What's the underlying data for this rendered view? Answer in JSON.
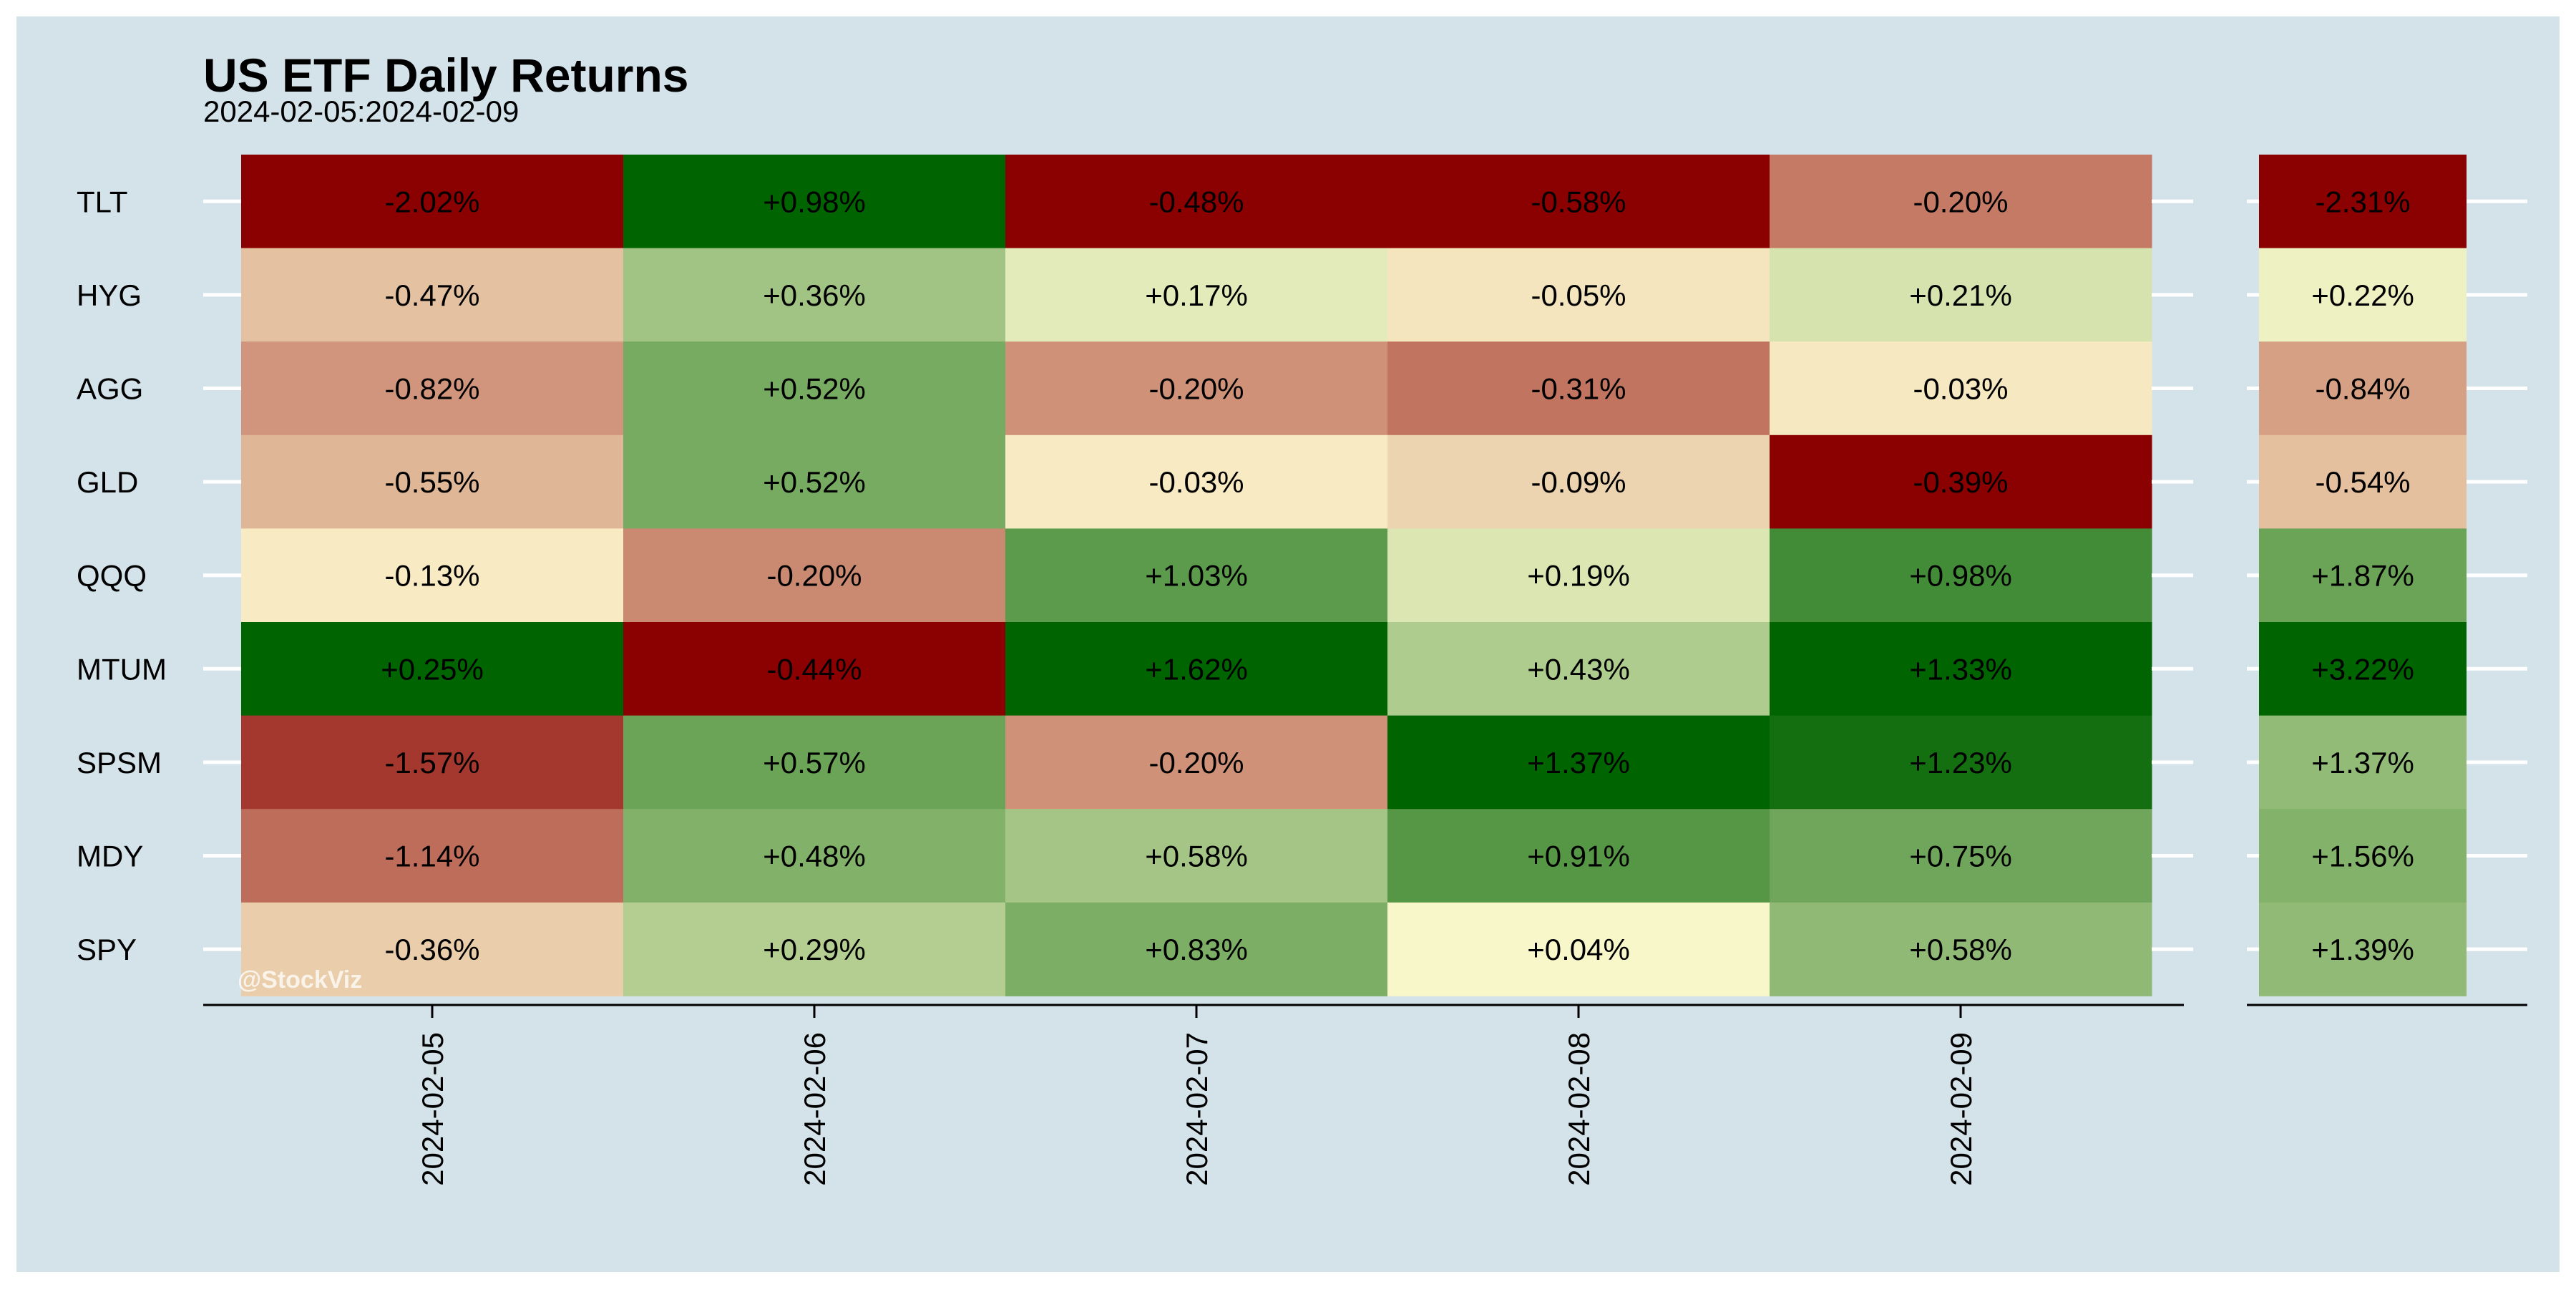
{
  "chart_data": {
    "type": "heatmap",
    "title": "US ETF Daily Returns",
    "subtitle": "2024-02-05:2024-02-09",
    "rows": [
      "TLT",
      "HYG",
      "AGG",
      "GLD",
      "QQQ",
      "MTUM",
      "SPSM",
      "MDY",
      "SPY"
    ],
    "columns": [
      "2024-02-05",
      "2024-02-06",
      "2024-02-07",
      "2024-02-08",
      "2024-02-09"
    ],
    "values": [
      [
        -2.02,
        0.98,
        -0.48,
        -0.58,
        -0.2
      ],
      [
        -0.47,
        0.36,
        0.17,
        -0.05,
        0.21
      ],
      [
        -0.82,
        0.52,
        -0.2,
        -0.31,
        -0.03
      ],
      [
        -0.55,
        0.52,
        -0.03,
        -0.09,
        -0.39
      ],
      [
        -0.13,
        -0.2,
        1.03,
        0.19,
        0.98
      ],
      [
        0.25,
        -0.44,
        1.62,
        0.43,
        1.33
      ],
      [
        -1.57,
        0.57,
        -0.2,
        1.37,
        1.23
      ],
      [
        -1.14,
        0.48,
        0.58,
        0.91,
        0.75
      ],
      [
        -0.36,
        0.29,
        0.83,
        0.04,
        0.58
      ]
    ],
    "labels": [
      [
        "-2.02%",
        "+0.98%",
        "-0.48%",
        "-0.58%",
        "-0.20%"
      ],
      [
        "-0.47%",
        "+0.36%",
        "+0.17%",
        "-0.05%",
        "+0.21%"
      ],
      [
        "-0.82%",
        "+0.52%",
        "-0.20%",
        "-0.31%",
        "-0.03%"
      ],
      [
        "-0.55%",
        "+0.52%",
        "-0.03%",
        "-0.09%",
        "-0.39%"
      ],
      [
        "-0.13%",
        "-0.20%",
        "+1.03%",
        "+0.19%",
        "+0.98%"
      ],
      [
        "+0.25%",
        "-0.44%",
        "+1.62%",
        "+0.43%",
        "+1.33%"
      ],
      [
        "-1.57%",
        "+0.57%",
        "-0.20%",
        "+1.37%",
        "+1.23%"
      ],
      [
        "-1.14%",
        "+0.48%",
        "+0.58%",
        "+0.91%",
        "+0.75%"
      ],
      [
        "-0.36%",
        "+0.29%",
        "+0.83%",
        "+0.04%",
        "+0.58%"
      ]
    ],
    "totals": [
      -2.31,
      0.22,
      -0.84,
      -0.54,
      1.87,
      3.22,
      1.37,
      1.56,
      1.39
    ],
    "total_labels": [
      "-2.31%",
      "+0.22%",
      "-0.84%",
      "-0.54%",
      "+1.87%",
      "+3.22%",
      "+1.37%",
      "+1.56%",
      "+1.39%"
    ],
    "colors": {
      "negative": "#8b0000",
      "neutral": "#fffbd0",
      "positive": "#006400",
      "panel_background": "#d4e3ea",
      "outer_background": "#ffffff",
      "tick_color": "#ffffff"
    },
    "watermark": "@StockViz"
  }
}
